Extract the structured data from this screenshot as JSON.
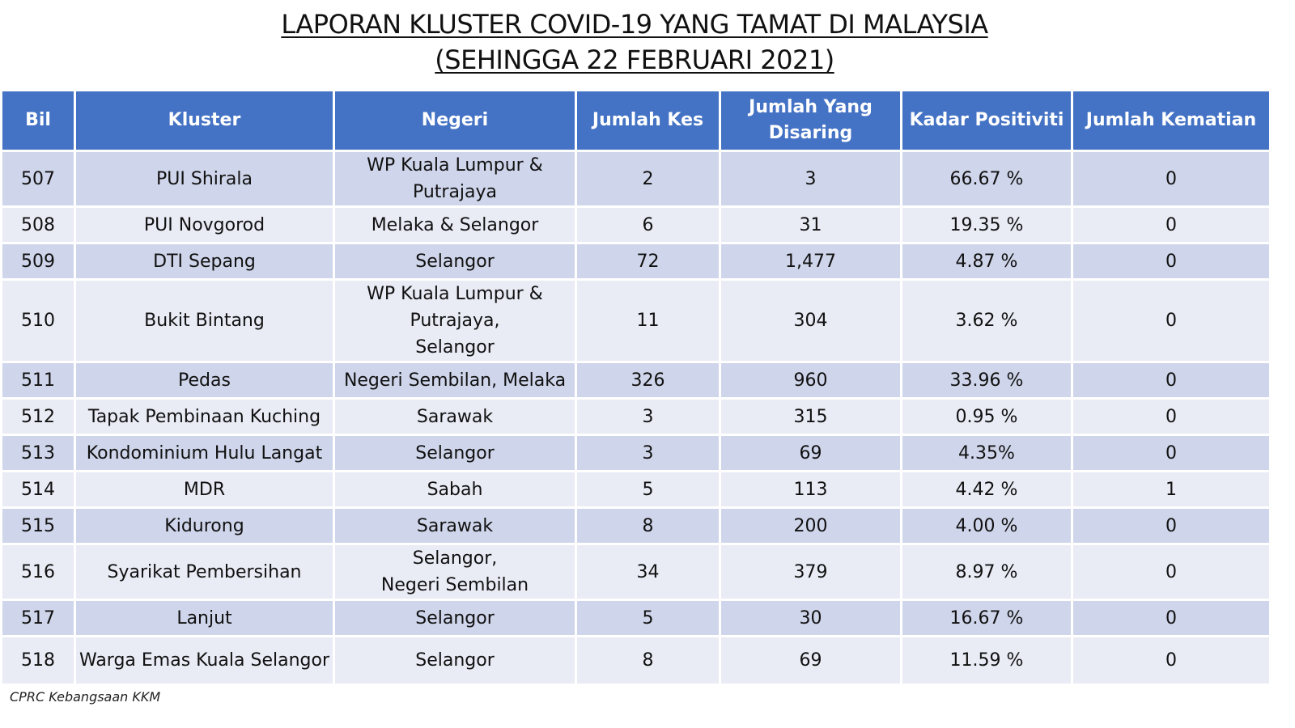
{
  "title": {
    "line1": "LAPORAN KLUSTER COVID-19 YANG TAMAT DI MALAYSIA",
    "line2": "(SEHINGGA 22 FEBRUARI 2021)"
  },
  "table": {
    "headers": [
      "Bil",
      "Kluster",
      "Negeri",
      "Jumlah Kes",
      "Jumlah Yang Disaring",
      "Kadar Positiviti",
      "Jumlah Kematian"
    ],
    "rows": [
      {
        "bil": "507",
        "kluster": "PUI Shirala",
        "negeri": [
          "WP Kuala Lumpur &",
          "Putrajaya"
        ],
        "kes": "2",
        "disaring": "3",
        "positiviti": "66.67 %",
        "kematian": "0"
      },
      {
        "bil": "508",
        "kluster": "PUI Novgorod",
        "negeri": [
          "Melaka & Selangor"
        ],
        "kes": "6",
        "disaring": "31",
        "positiviti": "19.35 %",
        "kematian": "0"
      },
      {
        "bil": "509",
        "kluster": "DTI Sepang",
        "negeri": [
          "Selangor"
        ],
        "kes": "72",
        "disaring": "1,477",
        "positiviti": "4.87 %",
        "kematian": "0"
      },
      {
        "bil": "510",
        "kluster": "Bukit Bintang",
        "negeri": [
          "WP Kuala Lumpur &",
          "Putrajaya,",
          "Selangor"
        ],
        "kes": "11",
        "disaring": "304",
        "positiviti": "3.62 %",
        "kematian": "0"
      },
      {
        "bil": "511",
        "kluster": "Pedas",
        "negeri": [
          "Negeri Sembilan, Melaka"
        ],
        "kes": "326",
        "disaring": "960",
        "positiviti": "33.96 %",
        "kematian": "0"
      },
      {
        "bil": "512",
        "kluster": "Tapak Pembinaan Kuching",
        "negeri": [
          "Sarawak"
        ],
        "kes": "3",
        "disaring": "315",
        "positiviti": "0.95 %",
        "kematian": "0"
      },
      {
        "bil": "513",
        "kluster": "Kondominium Hulu Langat",
        "negeri": [
          "Selangor"
        ],
        "kes": "3",
        "disaring": "69",
        "positiviti": "4.35%",
        "kematian": "0"
      },
      {
        "bil": "514",
        "kluster": "MDR",
        "negeri": [
          "Sabah"
        ],
        "kes": "5",
        "disaring": "113",
        "positiviti": "4.42 %",
        "kematian": "1"
      },
      {
        "bil": "515",
        "kluster": "Kidurong",
        "negeri": [
          "Sarawak"
        ],
        "kes": "8",
        "disaring": "200",
        "positiviti": "4.00 %",
        "kematian": "0"
      },
      {
        "bil": "516",
        "kluster": "Syarikat Pembersihan",
        "negeri": [
          "Selangor,",
          "Negeri Sembilan"
        ],
        "kes": "34",
        "disaring": "379",
        "positiviti": "8.97 %",
        "kematian": "0"
      },
      {
        "bil": "517",
        "kluster": "Lanjut",
        "negeri": [
          "Selangor"
        ],
        "kes": "5",
        "disaring": "30",
        "positiviti": "16.67 %",
        "kematian": "0"
      },
      {
        "bil": "518",
        "kluster": "Warga Emas Kuala Selangor",
        "negeri": [
          "Selangor"
        ],
        "kes": "8",
        "disaring": "69",
        "positiviti": "11.59 %",
        "kematian": "0"
      }
    ]
  },
  "footer": "CPRC Kebangsaan KKM",
  "colors": {
    "header_bg": "#4472c4",
    "row_dark": "#cfd5ea",
    "row_light": "#e9ebf5"
  }
}
